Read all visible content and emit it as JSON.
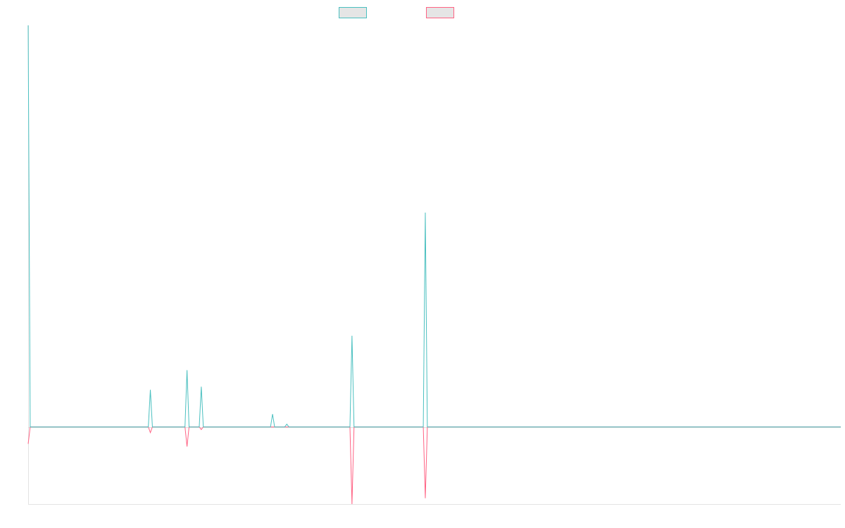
{
  "chart_data": {
    "type": "line",
    "title": "",
    "xlabel": "",
    "ylabel": "",
    "xlim": [
      0,
      399
    ],
    "ylim": [
      -20,
      104
    ],
    "grid": false,
    "legend": "top-center",
    "zero_line": true,
    "series": [
      {
        "color": "#4bc0c0",
        "legend_fill": "#e5e5e5",
        "nonzero_points": [
          [
            0,
            104
          ],
          [
            60,
            9.6
          ],
          [
            78,
            14.7
          ],
          [
            85,
            10.4
          ],
          [
            120,
            3.3
          ],
          [
            127,
            0.7
          ],
          [
            159,
            23.6
          ],
          [
            195,
            55.5
          ]
        ]
      },
      {
        "color": "#ff6384",
        "legend_fill": "#e5e5e5",
        "nonzero_points": [
          [
            0,
            -4.4
          ],
          [
            60,
            -1.5
          ],
          [
            78,
            -5.1
          ],
          [
            85,
            -0.7
          ],
          [
            159,
            -20
          ],
          [
            195,
            -18.5
          ]
        ]
      }
    ]
  }
}
